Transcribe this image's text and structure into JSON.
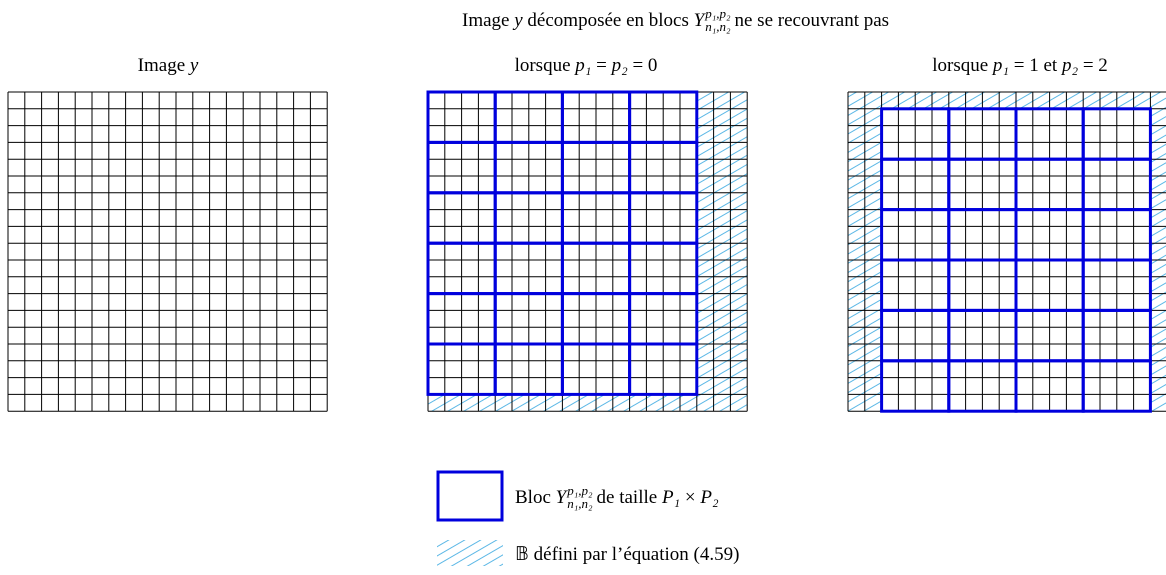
{
  "title": {
    "parts": [
      "Image ",
      "y",
      " décomposée en blocs ",
      "Y",
      "p₁,p₂",
      "n₁,n₂",
      " ne se recouvrant pas"
    ]
  },
  "panels": [
    {
      "label": [
        "Image ",
        "y"
      ]
    },
    {
      "label": [
        "lorsque ",
        "p₁",
        " = ",
        "p₂",
        " = 0"
      ]
    },
    {
      "label": [
        "lorsque ",
        "p₁",
        " = 1 et ",
        "p₂",
        " = 2"
      ]
    }
  ],
  "legend": [
    {
      "parts": [
        "Bloc ",
        "Y",
        "p₁,p₂",
        "n₁,n₂",
        " de taille ",
        "P₁",
        " × ",
        "P₂"
      ]
    },
    {
      "text": "𝔹 défini par l’équation (4.59)"
    }
  ]
}
